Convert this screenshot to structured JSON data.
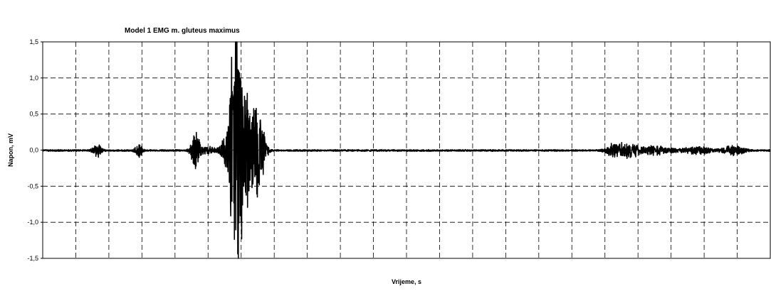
{
  "chart_data": {
    "type": "line",
    "title": "Model 1 EMG m. gluteus maximus",
    "xlabel": "Vrijeme, s",
    "ylabel": "Napon, mV",
    "ylim": [
      -1.5,
      1.5
    ],
    "yticks": [
      "1,5",
      "1,0",
      "0,5",
      "0,0",
      "-0,5",
      "-1,0",
      "-1,5"
    ],
    "ytick_values": [
      1.5,
      1.0,
      0.5,
      0.0,
      -0.5,
      -1.0,
      -1.5
    ],
    "xlim": [
      0,
      100
    ],
    "x_gridlines": 22,
    "grid": true,
    "legend": "none",
    "series": [
      {
        "color": "#000000",
        "bursts": [
          {
            "center": 7.5,
            "width": 0.6,
            "amplitude": 0.09
          },
          {
            "center": 13.2,
            "width": 0.5,
            "amplitude": 0.1
          },
          {
            "center": 21.0,
            "width": 0.6,
            "amplitude": 0.27
          },
          {
            "center": 22.7,
            "width": 1.2,
            "amplitude": 0.05
          },
          {
            "center": 25.0,
            "width": 0.7,
            "amplitude": 0.14
          },
          {
            "center": 26.2,
            "width": 0.6,
            "amplitude": 0.85
          },
          {
            "center": 26.8,
            "width": 0.9,
            "amplitude": 1.3
          },
          {
            "center": 28.0,
            "width": 1.3,
            "amplitude": 0.65
          },
          {
            "center": 29.6,
            "width": 0.9,
            "amplitude": 0.55
          },
          {
            "center": 78.8,
            "width": 1.2,
            "amplitude": 0.12
          },
          {
            "center": 80.8,
            "width": 1.0,
            "amplitude": 0.09
          },
          {
            "center": 84.0,
            "width": 2.5,
            "amplitude": 0.06
          },
          {
            "center": 90.0,
            "width": 2.0,
            "amplitude": 0.05
          },
          {
            "center": 95.0,
            "width": 1.5,
            "amplitude": 0.07
          }
        ],
        "baseline_noise": 0.012
      }
    ]
  }
}
